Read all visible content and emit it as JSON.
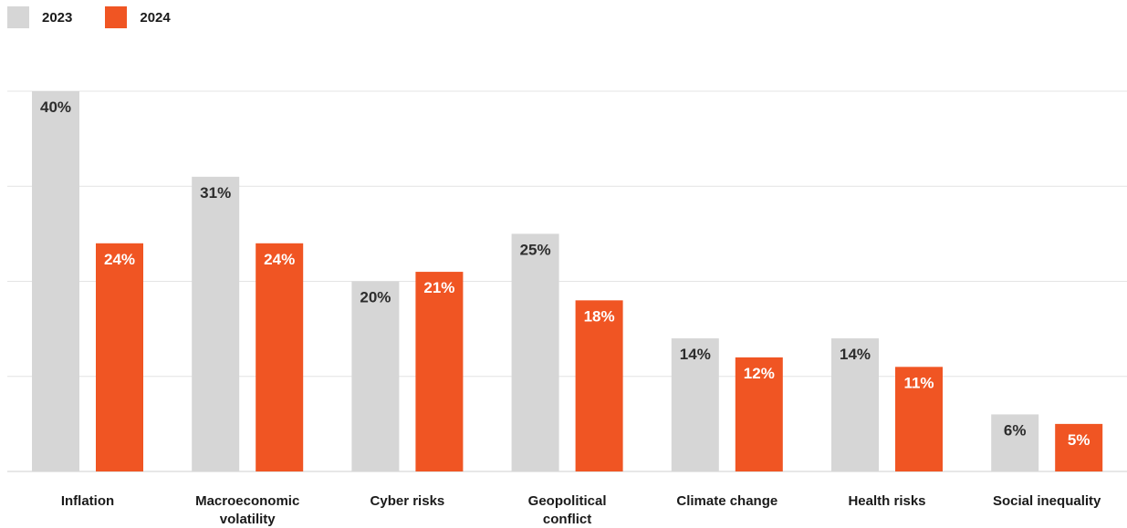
{
  "chart_data": {
    "type": "bar",
    "categories": [
      [
        "Inflation"
      ],
      [
        "Macroeconomic",
        "volatility"
      ],
      [
        "Cyber risks"
      ],
      [
        "Geopolitical",
        "conflict"
      ],
      [
        "Climate change"
      ],
      [
        "Health risks"
      ],
      [
        "Social inequality"
      ]
    ],
    "series": [
      {
        "name": "2023",
        "color": "#d6d6d6",
        "label_color": "#2d2d2d",
        "values": [
          40,
          31,
          20,
          25,
          14,
          14,
          6
        ]
      },
      {
        "name": "2024",
        "color": "#f05523",
        "label_color": "#ffffff",
        "values": [
          24,
          24,
          21,
          18,
          12,
          11,
          5
        ]
      }
    ],
    "value_suffix": "%",
    "ylim": [
      0,
      40
    ],
    "gridlines": [
      0,
      10,
      20,
      30,
      40
    ],
    "grid": true,
    "legend_position": "top-left",
    "title": "",
    "xlabel": "",
    "ylabel": ""
  }
}
